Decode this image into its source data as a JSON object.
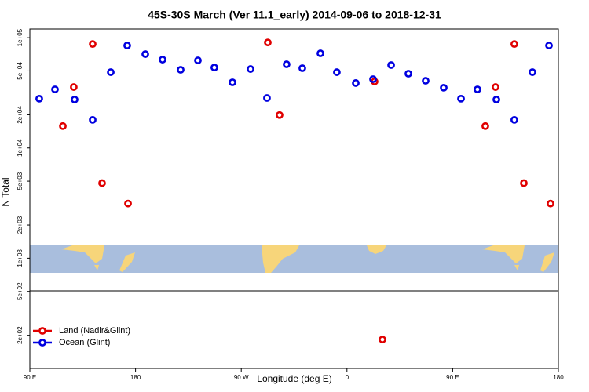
{
  "chart_data": {
    "type": "scatter",
    "title": "45S-30S March (Ver 11.1_early)   2014-09-06 to 2018-12-31",
    "x_label": "Longitude (deg E)",
    "y_label": "N Total",
    "y_scale": "log",
    "legend_position": "lower left",
    "xlim": [
      90,
      540
    ],
    "xticks": [
      {
        "value": 90,
        "label": "90 E"
      },
      {
        "value": 180,
        "label": "180"
      },
      {
        "value": 270,
        "label": "90 W"
      },
      {
        "value": 360,
        "label": "0"
      },
      {
        "value": 450,
        "label": "90 E"
      },
      {
        "value": 540,
        "label": "180"
      }
    ],
    "ylim": [
      100,
      120000
    ],
    "yticks": [
      {
        "value": 100000,
        "label": "1e+05"
      },
      {
        "value": 50000,
        "label": "5e+04"
      },
      {
        "value": 20000,
        "label": "2e+04"
      },
      {
        "value": 10000,
        "label": "1e+04"
      },
      {
        "value": 5000,
        "label": "5e+03"
      },
      {
        "value": 2000,
        "label": "2e+03"
      },
      {
        "value": 1000,
        "label": "1e+03"
      },
      {
        "value": 500,
        "label": "5e+02"
      },
      {
        "value": 200,
        "label": "2e+02"
      }
    ],
    "series": [
      {
        "name": "Land (Nadir&Glint)",
        "color": "#e00000",
        "x": [
          118.1,
          127.4,
          143.5,
          151.5,
          173.6,
          292.6,
          302.6,
          383.5,
          390.2,
          477.8,
          486.5,
          502.5,
          510.6,
          533.3
        ],
        "values": [
          15800,
          35700,
          87700,
          4800,
          3130,
          90600,
          19900,
          40100,
          183,
          15800,
          35700,
          87700,
          4800,
          3130
        ]
      },
      {
        "name": "Ocean (Glint)",
        "color": "#0000e0",
        "x": [
          98.0,
          111.4,
          128.1,
          143.5,
          158.9,
          172.9,
          188.3,
          203.0,
          218.4,
          233.1,
          247.1,
          262.5,
          277.9,
          291.9,
          308.6,
          322.0,
          337.4,
          351.4,
          367.5,
          382.2,
          397.6,
          412.3,
          427.0,
          442.4,
          457.1,
          471.1,
          487.2,
          502.5,
          517.9,
          532.0
        ],
        "values": [
          28000,
          34000,
          27500,
          18000,
          48700,
          85000,
          71000,
          63300,
          51200,
          62300,
          53700,
          39400,
          52000,
          28400,
          57400,
          52900,
          72200,
          48700,
          38800,
          42100,
          56500,
          47200,
          40700,
          35200,
          28000,
          34000,
          27500,
          18000,
          48700,
          85000
        ]
      }
    ]
  }
}
